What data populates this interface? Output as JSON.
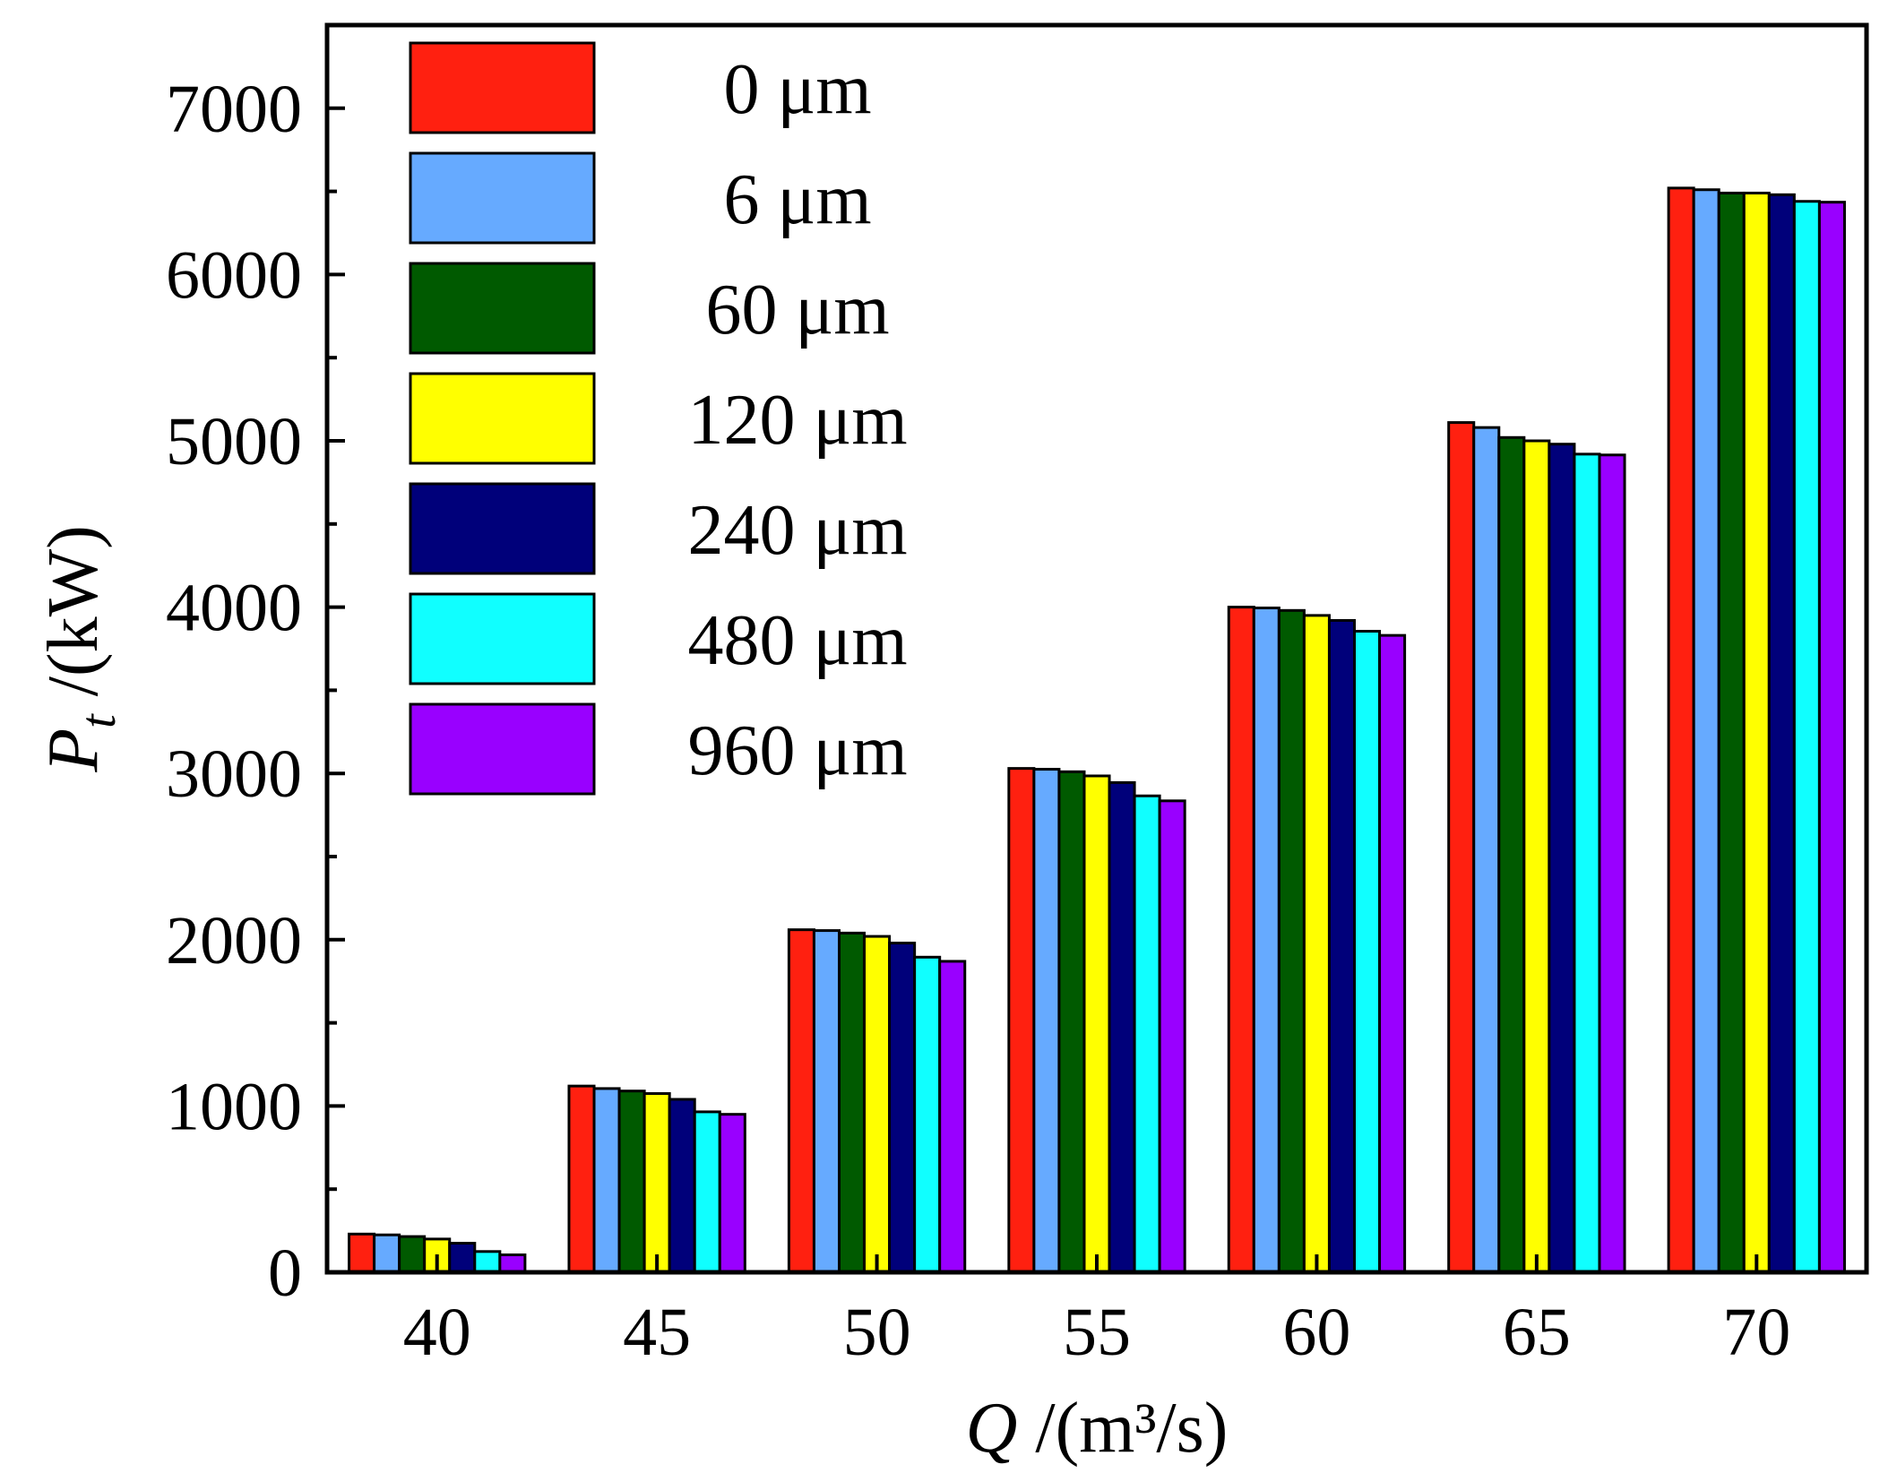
{
  "chart_data": {
    "type": "bar",
    "title": "",
    "xlabel": "Q /(m³/s)",
    "xlabel_symbol": "Q",
    "xlabel_unit": " /(m³/s)",
    "ylabel": "Pt /(kW)",
    "ylabel_symbol": "P",
    "ylabel_subscript": "t",
    "ylabel_unit": " /(kW)",
    "ylim": [
      0,
      7500
    ],
    "yticks": [
      0,
      1000,
      2000,
      3000,
      4000,
      5000,
      6000,
      7000
    ],
    "ytick_labels": [
      "0",
      "1000",
      "2000",
      "3000",
      "4000",
      "5000",
      "6000",
      "7000"
    ],
    "categories": [
      "40",
      "45",
      "50",
      "55",
      "60",
      "65",
      "70"
    ],
    "legend_position": "top-left",
    "series": [
      {
        "name": "0 μm",
        "color": "#FF2010",
        "values": [
          230,
          1120,
          2060,
          3030,
          4000,
          5110,
          6520
        ]
      },
      {
        "name": "6 μm",
        "color": "#66AAFF",
        "values": [
          225,
          1105,
          2055,
          3025,
          3995,
          5080,
          6510
        ]
      },
      {
        "name": "60 μm",
        "color": "#005A00",
        "values": [
          215,
          1090,
          2040,
          3010,
          3980,
          5020,
          6490
        ]
      },
      {
        "name": "120 μm",
        "color": "#FFFF00",
        "values": [
          200,
          1075,
          2020,
          2985,
          3950,
          5000,
          6490
        ]
      },
      {
        "name": "240 μm",
        "color": "#00007A",
        "values": [
          175,
          1040,
          1980,
          2945,
          3920,
          4980,
          6480
        ]
      },
      {
        "name": "480 μm",
        "color": "#10FFFF",
        "values": [
          125,
          965,
          1895,
          2865,
          3855,
          4920,
          6440
        ]
      },
      {
        "name": "960 μm",
        "color": "#9900FF",
        "values": [
          105,
          950,
          1870,
          2835,
          3830,
          4915,
          6435
        ]
      }
    ]
  }
}
